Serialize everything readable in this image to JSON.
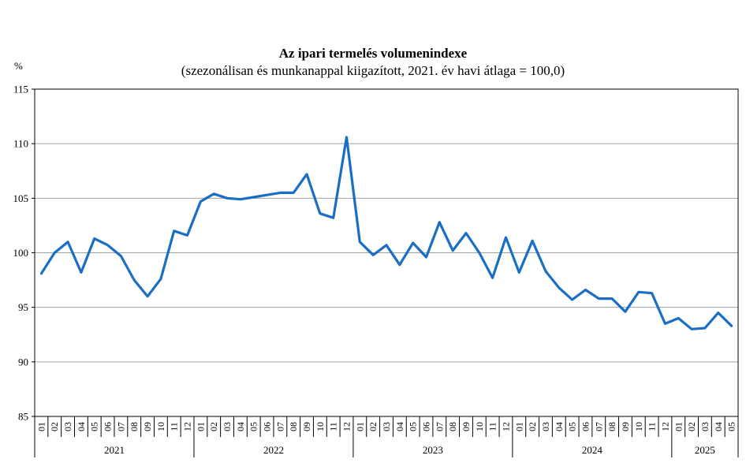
{
  "chart_data": {
    "type": "line",
    "title": "Az ipari termelés volumenindexe",
    "subtitle": "(szezonálisan és munkanappal kiigazított, 2021. év havi átlaga = 100,0)",
    "ylabel": "%",
    "ylim": [
      85,
      115
    ],
    "yticks": [
      "85",
      "90",
      "95",
      "100",
      "105",
      "110",
      "115"
    ],
    "grid": true,
    "line_color": "#1a6fc4",
    "months": [
      "01",
      "02",
      "03",
      "04",
      "05",
      "06",
      "07",
      "08",
      "09",
      "10",
      "11",
      "12",
      "01",
      "02",
      "03",
      "04",
      "05",
      "06",
      "07",
      "08",
      "09",
      "10",
      "11",
      "12",
      "01",
      "02",
      "03",
      "04",
      "05",
      "06",
      "07",
      "08",
      "09",
      "10",
      "11",
      "12",
      "01",
      "02",
      "03",
      "04",
      "05",
      "06",
      "07",
      "08",
      "09",
      "10",
      "11",
      "12",
      "01",
      "02",
      "03",
      "04",
      "05"
    ],
    "years": [
      {
        "label": "2021",
        "months": 12
      },
      {
        "label": "2022",
        "months": 12
      },
      {
        "label": "2023",
        "months": 12
      },
      {
        "label": "2024",
        "months": 12
      },
      {
        "label": "2025",
        "months": 5
      }
    ],
    "series": [
      {
        "values": [
          98.1,
          100.0,
          101.0,
          98.2,
          101.3,
          100.7,
          99.7,
          97.5,
          96.0,
          97.6,
          102.0,
          101.6,
          104.7,
          105.4,
          105.0,
          104.9,
          105.1,
          105.3,
          105.5,
          105.5,
          107.2,
          103.6,
          103.2,
          110.6,
          101.0,
          99.8,
          100.7,
          98.9,
          100.9,
          99.6,
          102.8,
          100.2,
          101.8,
          100.0,
          97.7,
          101.4,
          98.2,
          101.1,
          98.3,
          96.8,
          95.7,
          96.6,
          95.8,
          95.8,
          94.6,
          96.4,
          96.3,
          93.5,
          94.0,
          93.0,
          93.1,
          94.5,
          93.3
        ]
      }
    ]
  }
}
